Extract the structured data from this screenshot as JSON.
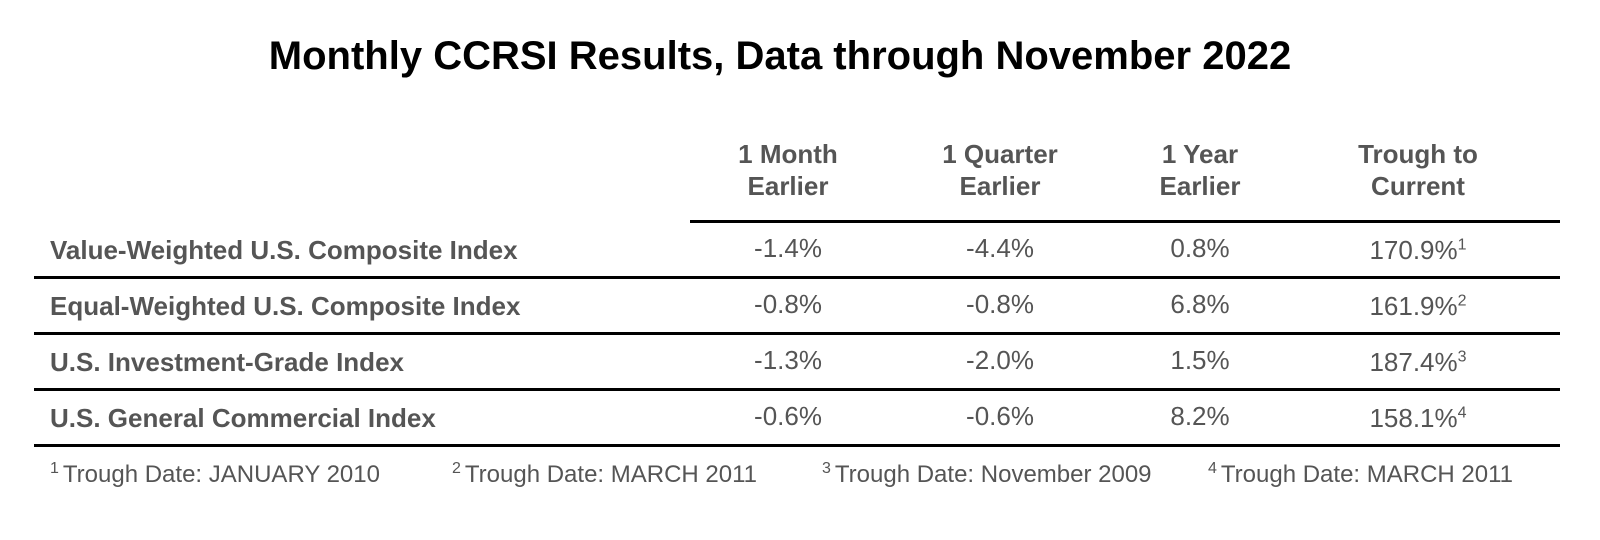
{
  "title": "Monthly CCRSI Results, Data through November 2022",
  "columns": [
    {
      "line1": "1 Month",
      "line2": "Earlier"
    },
    {
      "line1": "1 Quarter",
      "line2": "Earlier"
    },
    {
      "line1": "1 Year",
      "line2": "Earlier"
    },
    {
      "line1": "Trough to",
      "line2": "Current"
    }
  ],
  "rows": [
    {
      "label": "Value-Weighted U.S. Composite Index",
      "month": "-1.4%",
      "quarter": "-4.4%",
      "year": "0.8%",
      "trough": "170.9%",
      "note": "1"
    },
    {
      "label": "Equal-Weighted U.S. Composite Index",
      "month": "-0.8%",
      "quarter": "-0.8%",
      "year": "6.8%",
      "trough": "161.9%",
      "note": "2"
    },
    {
      "label": "U.S. Investment-Grade Index",
      "month": "-1.3%",
      "quarter": "-2.0%",
      "year": "1.5%",
      "trough": "187.4%",
      "note": "3"
    },
    {
      "label": "U.S. General Commercial Index",
      "month": "-0.6%",
      "quarter": "-0.6%",
      "year": "8.2%",
      "trough": "158.1%",
      "note": "4"
    }
  ],
  "footnotes": [
    {
      "mark": "1",
      "text": "Trough Date: JANUARY 2010"
    },
    {
      "mark": "2",
      "text": "Trough Date: MARCH 2011"
    },
    {
      "mark": "3",
      "text": "Trough Date: November 2009"
    },
    {
      "mark": "4",
      "text": "Trough Date: MARCH 2011"
    }
  ]
}
